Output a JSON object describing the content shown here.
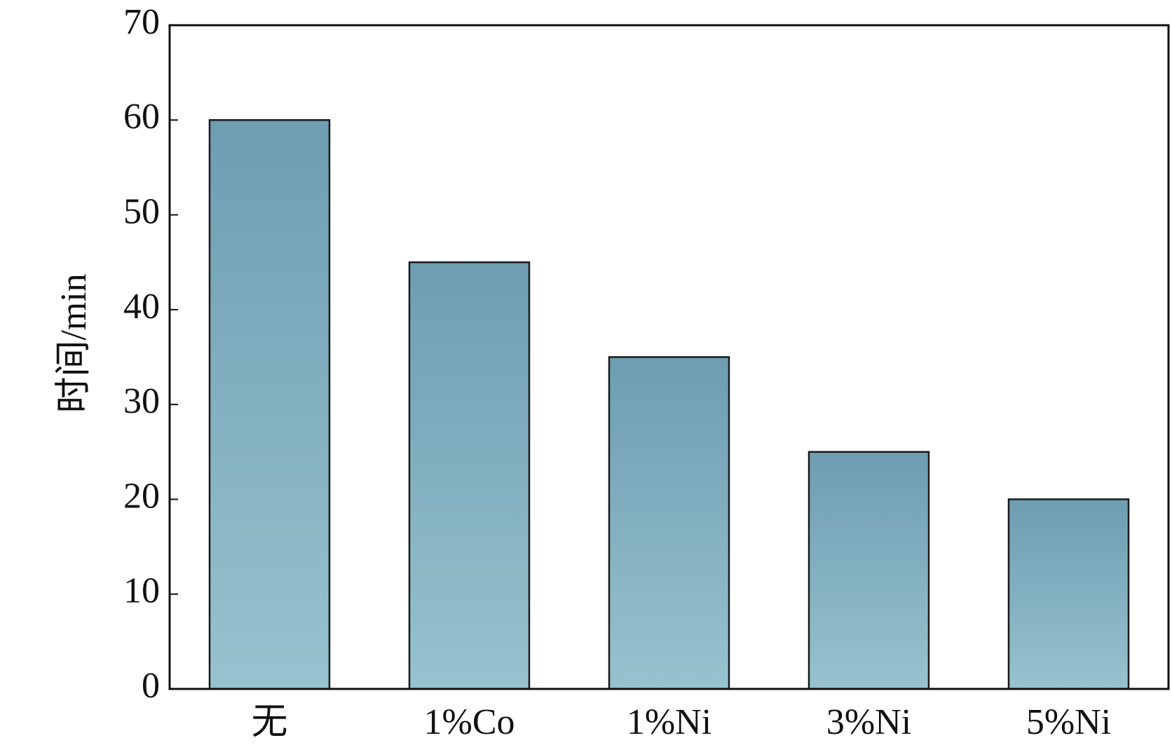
{
  "chart_data": {
    "type": "bar",
    "ylabel": "时间/min",
    "categories": [
      "无",
      "1%Co",
      "1%Ni",
      "3%Ni",
      "5%Ni"
    ],
    "values": [
      60,
      45,
      35,
      25,
      20
    ],
    "gradient": [
      "#6e9db2",
      "#97c2ce"
    ],
    "ylim": [
      0,
      70
    ],
    "yticks": [
      0,
      10,
      20,
      30,
      40,
      50,
      60,
      70
    ],
    "grid": false
  }
}
